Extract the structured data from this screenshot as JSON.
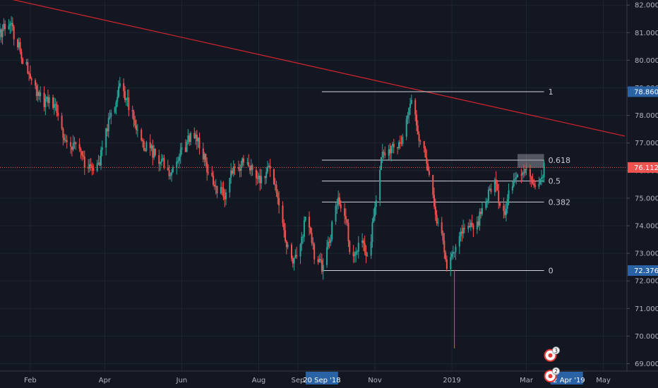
{
  "chart_data": {
    "type": "candlestick",
    "x_ticks": [
      "Feb",
      "Apr",
      "Jun",
      "Aug",
      "Sep",
      "Nov",
      "2019",
      "Mar",
      "May"
    ],
    "y_ticks": [
      "69.000",
      "70.000",
      "71.000",
      "72.000",
      "73.000",
      "74.000",
      "75.000",
      "76.000",
      "77.000",
      "78.000",
      "79.000",
      "80.000",
      "81.000",
      "82.000"
    ],
    "ylim": [
      68.6,
      82.2
    ],
    "date_range": [
      "2018-01-08",
      "2019-05-18"
    ],
    "current_price": "76.112",
    "price_labels": [
      {
        "text": "78.860",
        "value": 78.86
      },
      {
        "text": "72.376",
        "value": 72.376
      }
    ],
    "date_labels": [
      {
        "text": "20 Sep '18",
        "date": "2018-09-20"
      },
      {
        "text": "02 Apr '19",
        "date": "2019-04-02"
      }
    ],
    "fib_levels": [
      {
        "label": "1",
        "value": 78.86
      },
      {
        "label": "0.618",
        "value": 76.38
      },
      {
        "label": "0.5",
        "value": 75.62
      },
      {
        "label": "0.382",
        "value": 74.86
      },
      {
        "label": "0",
        "value": 72.376
      }
    ],
    "fib_range": {
      "start": "2018-09-20",
      "end": "2019-03-15"
    },
    "trendline": {
      "start": {
        "date": "2018-01-08",
        "value": 82.3
      },
      "end": {
        "date": "2019-05-18",
        "value": 77.25
      }
    },
    "highlight_box": {
      "start": "2019-02-22",
      "end": "2019-03-15",
      "low": 76.1,
      "high": 76.6
    },
    "markers": [
      {
        "text": "3"
      },
      {
        "text": "2"
      }
    ],
    "path": [
      [
        "2018-01-08",
        81.0
      ],
      [
        "2018-01-15",
        81.4
      ],
      [
        "2018-01-22",
        80.6
      ],
      [
        "2018-02-01",
        79.3
      ],
      [
        "2018-02-10",
        78.5
      ],
      [
        "2018-02-20",
        78.4
      ],
      [
        "2018-03-01",
        77.0
      ],
      [
        "2018-03-10",
        76.7
      ],
      [
        "2018-03-20",
        76.0
      ],
      [
        "2018-03-28",
        76.4
      ],
      [
        "2018-04-05",
        78.0
      ],
      [
        "2018-04-12",
        79.0
      ],
      [
        "2018-04-22",
        78.2
      ],
      [
        "2018-05-01",
        77.0
      ],
      [
        "2018-05-12",
        76.5
      ],
      [
        "2018-05-22",
        75.9
      ],
      [
        "2018-06-01",
        76.6
      ],
      [
        "2018-06-10",
        77.5
      ],
      [
        "2018-06-16",
        76.8
      ],
      [
        "2018-06-25",
        75.6
      ],
      [
        "2018-07-05",
        75.1
      ],
      [
        "2018-07-12",
        76.1
      ],
      [
        "2018-07-22",
        76.4
      ],
      [
        "2018-08-01",
        75.7
      ],
      [
        "2018-08-10",
        76.1
      ],
      [
        "2018-08-18",
        74.4
      ],
      [
        "2018-08-26",
        72.7
      ],
      [
        "2018-09-03",
        73.3
      ],
      [
        "2018-09-08",
        74.6
      ],
      [
        "2018-09-14",
        72.9
      ],
      [
        "2018-09-20",
        72.5
      ],
      [
        "2018-09-26",
        73.5
      ],
      [
        "2018-10-02",
        75.0
      ],
      [
        "2018-10-08",
        74.5
      ],
      [
        "2018-10-14",
        72.6
      ],
      [
        "2018-10-20",
        73.5
      ],
      [
        "2018-10-26",
        72.7
      ],
      [
        "2018-11-01",
        74.8
      ],
      [
        "2018-11-06",
        76.6
      ],
      [
        "2018-11-14",
        76.9
      ],
      [
        "2018-11-22",
        77.0
      ],
      [
        "2018-11-27",
        78.2
      ],
      [
        "2018-12-01",
        78.5
      ],
      [
        "2018-12-05",
        77.2
      ],
      [
        "2018-12-12",
        76.3
      ],
      [
        "2018-12-18",
        74.6
      ],
      [
        "2018-12-24",
        73.6
      ],
      [
        "2018-12-28",
        72.6
      ],
      [
        "2019-01-04",
        73.4
      ],
      [
        "2019-01-12",
        74.1
      ],
      [
        "2019-01-20",
        74.0
      ],
      [
        "2019-01-28",
        75.0
      ],
      [
        "2019-02-04",
        75.7
      ],
      [
        "2019-02-10",
        74.1
      ],
      [
        "2019-02-16",
        75.4
      ],
      [
        "2019-02-22",
        76.0
      ],
      [
        "2019-03-01",
        76.2
      ],
      [
        "2019-03-06",
        75.5
      ],
      [
        "2019-03-10",
        75.7
      ],
      [
        "2019-03-15",
        76.1
      ]
    ]
  }
}
